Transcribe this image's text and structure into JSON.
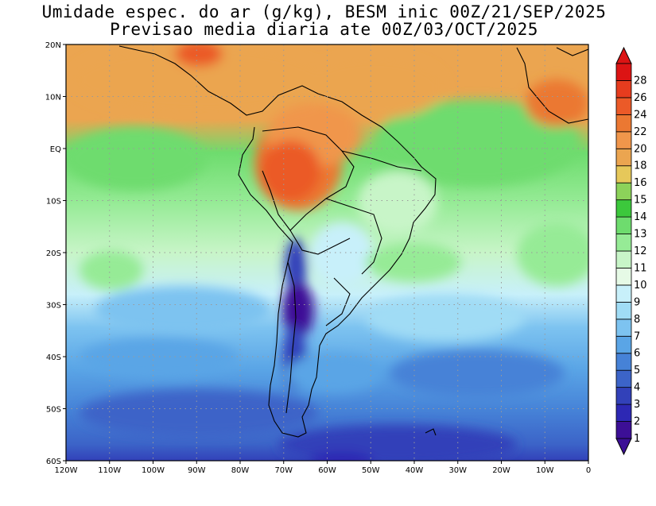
{
  "title": {
    "line1": "Umidade espec. do ar (g/kg), BESM inic 00Z/21/SEP/2025",
    "line2": "Previsao media diaria ate 00Z/03/OCT/2025"
  },
  "map": {
    "region": "South America",
    "lon_range": [
      -120,
      0
    ],
    "lat_range": [
      -60,
      20
    ],
    "grid": true,
    "lat_labels": [
      "20N",
      "10N",
      "EQ",
      "10S",
      "20S",
      "30S",
      "40S",
      "50S",
      "60S"
    ],
    "lon_labels": [
      "120W",
      "110W",
      "100W",
      "90W",
      "80W",
      "70W",
      "60W",
      "50W",
      "40W",
      "30W",
      "20W",
      "10W",
      "0"
    ]
  },
  "colorbar": {
    "unit": "g/kg",
    "labels": [
      "1",
      "2",
      "3",
      "4",
      "5",
      "6",
      "7",
      "8",
      "9",
      "10",
      "11",
      "12",
      "13",
      "14",
      "15",
      "16",
      "18",
      "20",
      "22",
      "24",
      "26",
      "28"
    ],
    "colors": [
      "#3c0f96",
      "#2d28b4",
      "#3241b9",
      "#3c64c8",
      "#4682d7",
      "#5aa5e6",
      "#7dc3f0",
      "#a0dcf5",
      "#c8f0fa",
      "#e6fae6",
      "#c8f5c8",
      "#96eb96",
      "#6edc6e",
      "#3cc83c",
      "#8cd25a",
      "#e6c85a",
      "#eba550",
      "#f0964b",
      "#eb7832",
      "#eb5a28",
      "#e63c1e",
      "#dc1414"
    ],
    "extend_min_color": "#3c0f96",
    "extend_max_color": "#dc1414"
  }
}
